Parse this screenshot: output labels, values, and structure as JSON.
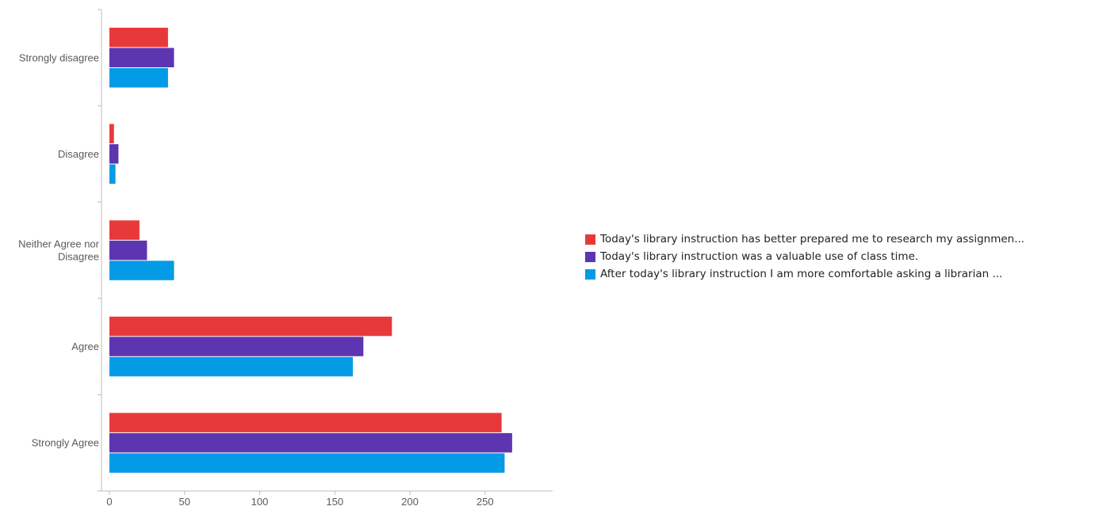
{
  "chart_data": {
    "type": "bar",
    "orientation": "horizontal",
    "categories": [
      "Strongly disagree",
      "Disagree",
      "Neither Agree nor Disagree",
      "Agree",
      "Strongly Agree"
    ],
    "category_lines": [
      [
        "Strongly disagree"
      ],
      [
        "Disagree"
      ],
      [
        "Neither Agree nor",
        "Disagree"
      ],
      [
        "Agree"
      ],
      [
        "Strongly Agree"
      ]
    ],
    "series": [
      {
        "name": "Today's library instruction has better prepared me to research my assignmen...",
        "color": "#e8393a",
        "values": [
          39,
          3,
          20,
          188,
          261
        ]
      },
      {
        "name": "Today's library instruction was a valuable use of class time.",
        "color": "#5e35b1",
        "values": [
          43,
          6,
          25,
          169,
          268
        ]
      },
      {
        "name": "After today's library instruction I am more comfortable asking a librarian ...",
        "color": "#039be5",
        "values": [
          39,
          4,
          43,
          162,
          263
        ]
      }
    ],
    "xlim": [
      0,
      295
    ],
    "xticks": [
      0,
      50,
      100,
      150,
      200,
      250
    ],
    "xlabel": "",
    "ylabel": "",
    "grid": false,
    "legend_position": "right"
  }
}
